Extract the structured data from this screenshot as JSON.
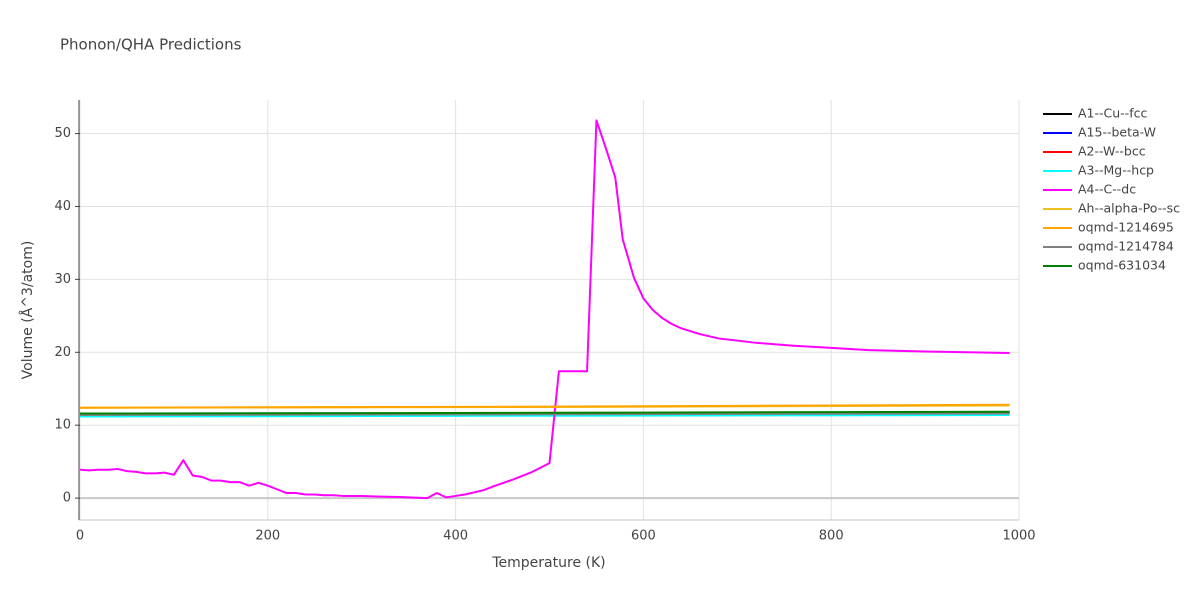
{
  "chart_data": {
    "type": "line",
    "title": "Phonon/QHA Predictions",
    "x_label": "Temperature (K)",
    "y_label": "Volume (Å^3/atom)",
    "xlim": [
      0,
      1000
    ],
    "xticks": [
      0,
      200,
      400,
      600,
      800,
      1000
    ],
    "ylim": [
      -3,
      54.6
    ],
    "yticks": [
      0,
      10,
      20,
      30,
      40,
      50
    ],
    "grid": true,
    "series": [
      {
        "name": "A1--Cu--fcc",
        "color": "#000000",
        "x": [
          0,
          500,
          990
        ],
        "values": [
          11.5,
          11.6,
          11.7
        ]
      },
      {
        "name": "A15--beta-W",
        "color": "#0000ff",
        "x": [
          0,
          500,
          990
        ],
        "values": [
          11.4,
          11.5,
          11.6
        ]
      },
      {
        "name": "A2--W--bcc",
        "color": "#ff0000",
        "x": [
          0,
          500,
          990
        ],
        "values": [
          11.5,
          11.6,
          11.7
        ]
      },
      {
        "name": "A3--Mg--hcp",
        "color": "#00ffff",
        "x": [
          0,
          500,
          990
        ],
        "values": [
          11.2,
          11.3,
          11.4
        ]
      },
      {
        "name": "A4--C--dc",
        "color": "#ff00ff",
        "x": [
          0,
          10,
          20,
          30,
          40,
          50,
          60,
          70,
          80,
          90,
          100,
          110,
          120,
          130,
          140,
          150,
          160,
          170,
          180,
          190,
          200,
          210,
          220,
          230,
          240,
          250,
          260,
          270,
          280,
          290,
          300,
          320,
          340,
          360,
          370,
          380,
          390,
          400,
          410,
          420,
          430,
          440,
          460,
          480,
          500,
          510,
          520,
          540,
          550,
          560,
          570,
          578,
          590,
          600,
          610,
          620,
          630,
          640,
          660,
          680,
          720,
          760,
          800,
          840,
          900,
          990
        ],
        "values": [
          3.9,
          3.8,
          3.9,
          3.9,
          4.0,
          3.7,
          3.6,
          3.4,
          3.4,
          3.5,
          3.2,
          5.2,
          3.1,
          2.9,
          2.4,
          2.4,
          2.2,
          2.2,
          1.7,
          2.1,
          1.7,
          1.2,
          0.7,
          0.7,
          0.5,
          0.5,
          0.4,
          0.4,
          0.3,
          0.3,
          0.3,
          0.2,
          0.15,
          0.05,
          0.0,
          0.7,
          0.1,
          0.3,
          0.5,
          0.8,
          1.1,
          1.6,
          2.5,
          3.5,
          4.8,
          17.4,
          17.4,
          17.4,
          51.8,
          48.0,
          44.0,
          35.5,
          30.2,
          27.4,
          25.8,
          24.7,
          23.9,
          23.3,
          22.5,
          21.9,
          21.3,
          20.9,
          20.6,
          20.3,
          20.1,
          19.9
        ]
      },
      {
        "name": "Ah--alpha-Po--sc",
        "color": "#f0c020",
        "x": [
          0,
          500,
          990
        ],
        "values": [
          12.4,
          12.5,
          12.7
        ]
      },
      {
        "name": "oqmd-1214695",
        "color": "#ffa500",
        "x": [
          0,
          500,
          990
        ],
        "values": [
          12.4,
          12.55,
          12.8
        ]
      },
      {
        "name": "oqmd-1214784",
        "color": "#808080",
        "x": [
          0,
          500,
          990
        ],
        "values": [
          11.4,
          11.5,
          11.6
        ]
      },
      {
        "name": "oqmd-631034",
        "color": "#008000",
        "x": [
          0,
          500,
          990
        ],
        "values": [
          11.6,
          11.7,
          11.85
        ]
      }
    ]
  }
}
